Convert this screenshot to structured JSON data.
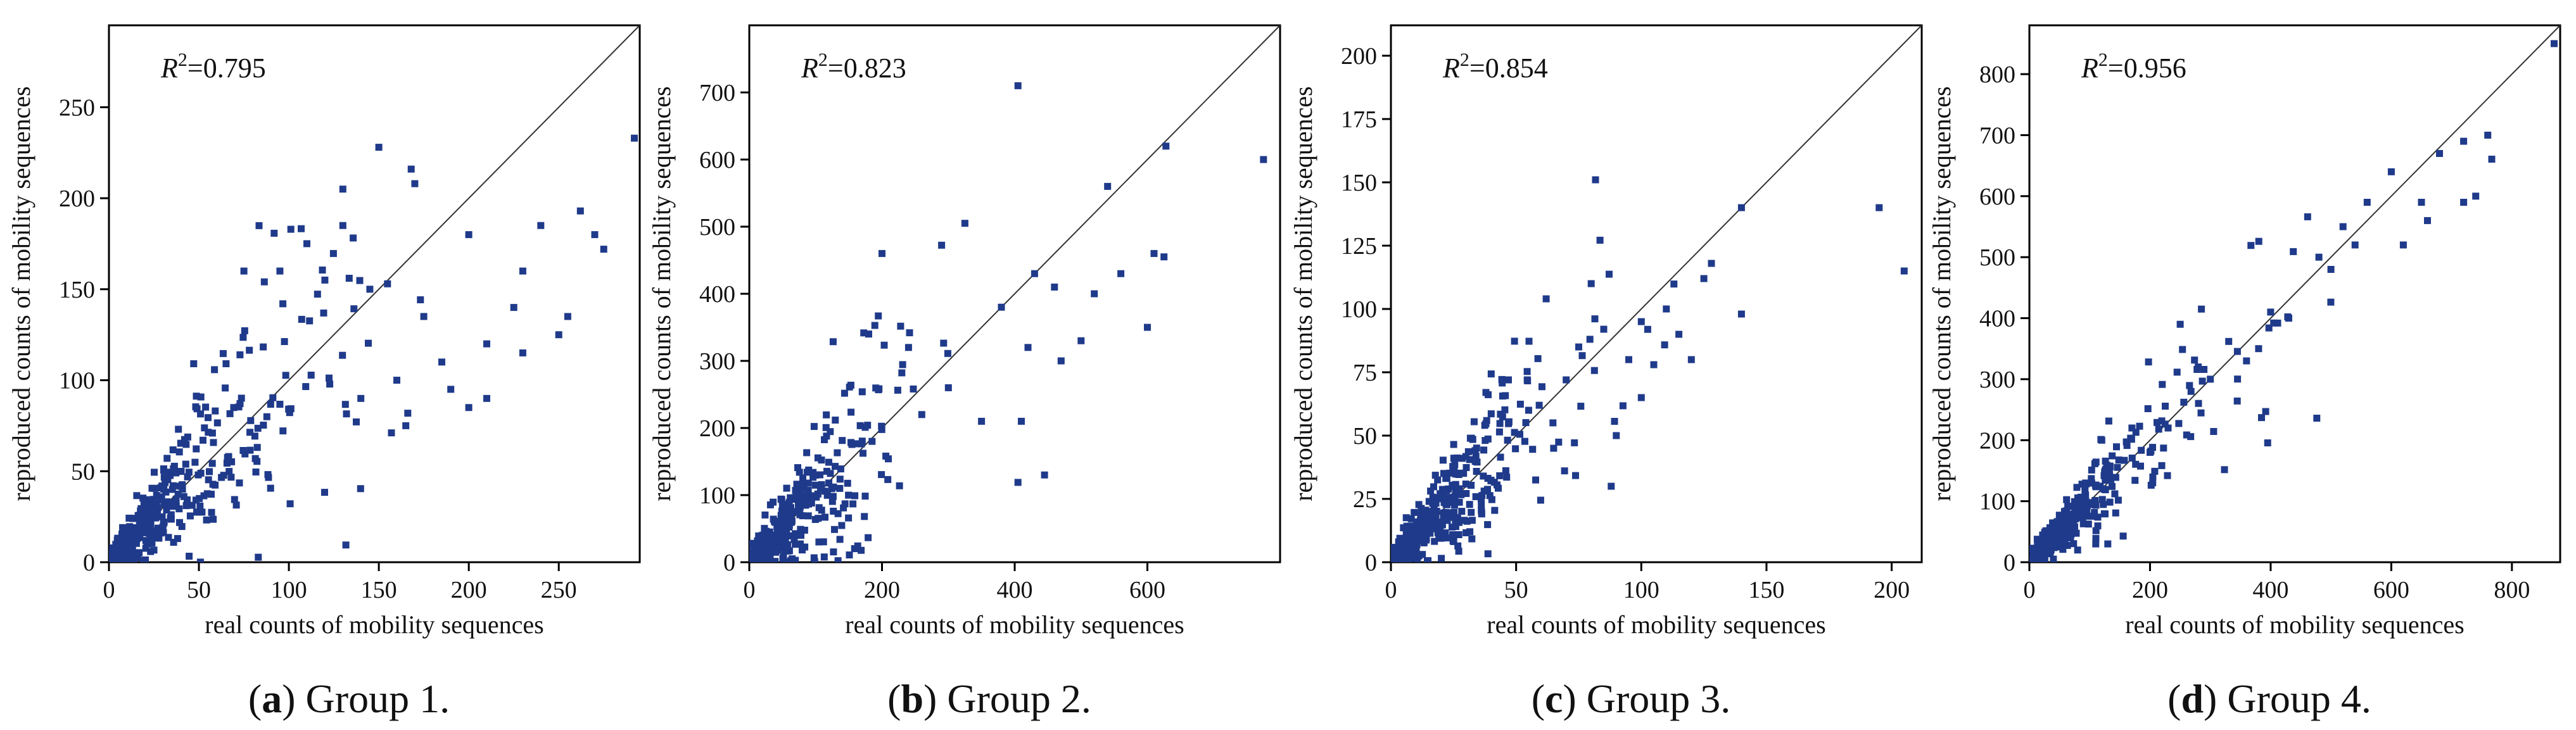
{
  "figure": {
    "point_color": "#1f3a8a",
    "line_color": "#333333",
    "axis_color": "#000000"
  },
  "chart_data": [
    {
      "type": "scatter",
      "id": "a",
      "caption_letter": "a",
      "caption_text": " Group 1.",
      "r2_value": "=0.795",
      "xlabel": "real counts of mobility sequences",
      "ylabel": "reproduced counts of mobility sequences",
      "xlim": [
        0,
        295
      ],
      "ylim": [
        0,
        295
      ],
      "xticks": [
        0,
        50,
        100,
        150,
        200,
        250
      ],
      "yticks": [
        0,
        50,
        100,
        150,
        200,
        250
      ],
      "diagonal": true,
      "seed": 11,
      "cloud": {
        "n": 420,
        "mean": 35,
        "slope": 1.0,
        "noise": 0.45,
        "floor": 0
      },
      "points": [
        [
          150,
          228
        ],
        [
          168,
          216
        ],
        [
          170,
          208
        ],
        [
          130,
          205
        ],
        [
          95,
          160
        ],
        [
          75,
          160
        ],
        [
          130,
          185
        ],
        [
          110,
          175
        ],
        [
          120,
          155
        ],
        [
          145,
          150
        ],
        [
          200,
          180
        ],
        [
          230,
          160
        ],
        [
          225,
          140
        ],
        [
          240,
          185
        ],
        [
          262,
          193
        ],
        [
          270,
          180
        ],
        [
          275,
          172
        ],
        [
          292,
          233
        ],
        [
          210,
          120
        ],
        [
          185,
          110
        ],
        [
          160,
          100
        ],
        [
          190,
          95
        ],
        [
          210,
          90
        ],
        [
          250,
          125
        ],
        [
          255,
          135
        ],
        [
          200,
          85
        ],
        [
          165,
          75
        ],
        [
          140,
          90
        ],
        [
          230,
          115
        ],
        [
          175,
          135
        ]
      ]
    },
    {
      "type": "scatter",
      "id": "b",
      "caption_letter": "b",
      "caption_text": " Group 2.",
      "r2_value": "=0.823",
      "xlabel": "real counts of mobility sequences",
      "ylabel": "reproduced counts of mobility sequences",
      "xlim": [
        0,
        800
      ],
      "ylim": [
        0,
        800
      ],
      "xticks": [
        0,
        200,
        400,
        600
      ],
      "yticks": [
        0,
        100,
        200,
        300,
        400,
        500,
        600,
        700
      ],
      "diagonal": true,
      "seed": 23,
      "cloud": {
        "n": 380,
        "mean": 80,
        "slope": 1.0,
        "noise": 0.5,
        "floor": 0
      },
      "points": [
        [
          405,
          710
        ],
        [
          628,
          620
        ],
        [
          775,
          600
        ],
        [
          325,
          505
        ],
        [
          540,
          560
        ],
        [
          460,
          410
        ],
        [
          420,
          320
        ],
        [
          445,
          130
        ],
        [
          600,
          350
        ],
        [
          610,
          460
        ],
        [
          625,
          455
        ],
        [
          200,
          460
        ],
        [
          520,
          400
        ],
        [
          380,
          380
        ],
        [
          430,
          430
        ],
        [
          500,
          330
        ],
        [
          560,
          430
        ],
        [
          470,
          300
        ],
        [
          300,
          260
        ],
        [
          350,
          210
        ],
        [
          260,
          220
        ],
        [
          240,
          320
        ],
        [
          180,
          340
        ],
        [
          410,
          210
        ]
      ]
    },
    {
      "type": "scatter",
      "id": "c",
      "caption_letter": "c",
      "caption_text": " Group 3.",
      "r2_value": "=0.854",
      "xlabel": "real counts of mobility sequences",
      "ylabel": "reproduced counts of mobility sequences",
      "xlim": [
        0,
        212
      ],
      "ylim": [
        0,
        212
      ],
      "xticks": [
        0,
        50,
        100,
        150,
        200
      ],
      "yticks": [
        0,
        25,
        50,
        75,
        100,
        125,
        150,
        175,
        200
      ],
      "diagonal": true,
      "seed": 37,
      "cloud": {
        "n": 400,
        "mean": 22,
        "slope": 1.0,
        "noise": 0.4,
        "floor": 0
      },
      "points": [
        [
          140,
          140
        ],
        [
          195,
          140
        ],
        [
          205,
          115
        ],
        [
          140,
          98
        ],
        [
          128,
          118
        ],
        [
          125,
          112
        ],
        [
          110,
          100
        ],
        [
          100,
          95
        ],
        [
          120,
          80
        ],
        [
          95,
          80
        ],
        [
          80,
          110
        ],
        [
          85,
          92
        ],
        [
          62,
          104
        ],
        [
          90,
          50
        ],
        [
          70,
          72
        ],
        [
          105,
          78
        ],
        [
          115,
          90
        ],
        [
          88,
          30
        ],
        [
          75,
          85
        ],
        [
          55,
          60
        ],
        [
          65,
          45
        ],
        [
          100,
          65
        ]
      ]
    },
    {
      "type": "scatter",
      "id": "d",
      "caption_letter": "d",
      "caption_text": " Group 4.",
      "r2_value": "=0.956",
      "xlabel": "real counts of mobility sequences",
      "ylabel": "reproduced counts of mobility sequences",
      "xlim": [
        0,
        880
      ],
      "ylim": [
        0,
        880
      ],
      "xticks": [
        0,
        200,
        400,
        600,
        800
      ],
      "yticks": [
        0,
        100,
        200,
        300,
        400,
        500,
        600,
        700,
        800
      ],
      "diagonal": true,
      "seed": 53,
      "cloud": {
        "n": 330,
        "mean": 110,
        "slope": 1.0,
        "noise": 0.22,
        "floor": 0
      },
      "points": [
        [
          870,
          850
        ],
        [
          760,
          700
        ],
        [
          720,
          690
        ],
        [
          740,
          600
        ],
        [
          720,
          590
        ],
        [
          680,
          670
        ],
        [
          650,
          590
        ],
        [
          600,
          640
        ],
        [
          560,
          590
        ],
        [
          540,
          520
        ],
        [
          520,
          550
        ],
        [
          500,
          480
        ],
        [
          480,
          500
        ],
        [
          620,
          520
        ],
        [
          660,
          560
        ],
        [
          430,
          400
        ],
        [
          400,
          410
        ],
        [
          380,
          350
        ],
        [
          360,
          330
        ],
        [
          300,
          300
        ],
        [
          250,
          390
        ],
        [
          280,
          320
        ],
        [
          230,
          220
        ],
        [
          200,
          180
        ],
        [
          170,
          220
        ],
        [
          120,
          200
        ],
        [
          110,
          30
        ],
        [
          130,
          30
        ],
        [
          80,
          20
        ]
      ]
    }
  ]
}
